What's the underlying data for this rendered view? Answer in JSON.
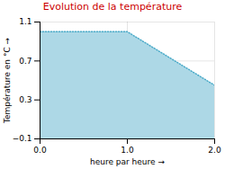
{
  "chart_data": {
    "type": "area",
    "title": "Evolution de la température",
    "xlabel": "heure par heure",
    "ylabel": "Température en °C",
    "x": [
      0,
      1,
      2
    ],
    "series": [
      {
        "type": "area",
        "color": "#add8e6",
        "values": [
          1.0,
          1.0,
          0.45
        ]
      },
      {
        "type": "line",
        "color": "#4aaac8",
        "line_style": "dotted",
        "values": [
          1.0,
          1.0,
          0.45
        ]
      }
    ],
    "xlim": [
      0,
      2
    ],
    "ylim": [
      -0.1,
      1.1
    ],
    "xticks": [
      0,
      1,
      2
    ],
    "yticks": [
      -0.1,
      0.3,
      0.7,
      1.1
    ],
    "grid": true
  }
}
